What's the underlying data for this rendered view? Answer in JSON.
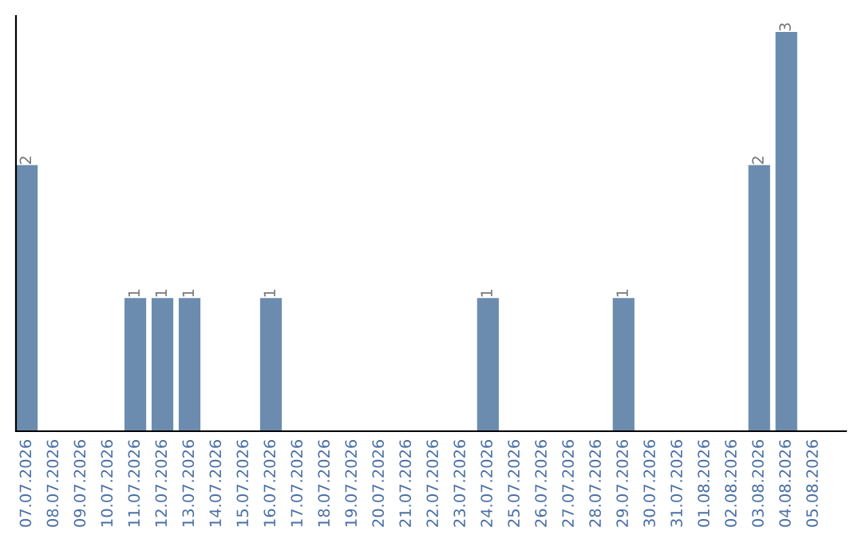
{
  "chart_data": {
    "type": "bar",
    "categories": [
      "07.07.2026",
      "08.07.2026",
      "09.07.2026",
      "10.07.2026",
      "11.07.2026",
      "12.07.2026",
      "13.07.2026",
      "14.07.2026",
      "15.07.2026",
      "16.07.2026",
      "17.07.2026",
      "18.07.2026",
      "19.07.2026",
      "20.07.2026",
      "21.07.2026",
      "22.07.2026",
      "23.07.2026",
      "24.07.2026",
      "25.07.2026",
      "26.07.2026",
      "27.07.2026",
      "28.07.2026",
      "29.07.2026",
      "30.07.2026",
      "31.07.2026",
      "01.08.2026",
      "02.08.2026",
      "03.08.2026",
      "04.08.2026",
      "05.08.2026"
    ],
    "values": [
      2,
      0,
      0,
      0,
      1,
      1,
      1,
      0,
      0,
      1,
      0,
      0,
      0,
      0,
      0,
      0,
      0,
      1,
      0,
      0,
      0,
      0,
      1,
      0,
      0,
      0,
      0,
      2,
      3,
      0
    ],
    "value_labels": [
      "2",
      null,
      null,
      null,
      "1",
      "1",
      "1",
      null,
      null,
      "1",
      null,
      null,
      null,
      null,
      null,
      null,
      null,
      "1",
      null,
      null,
      null,
      null,
      "1",
      null,
      null,
      null,
      null,
      "2",
      "3",
      null
    ],
    "color": "#6b8cae",
    "tick_labels": "x",
    "grid": false,
    "legend": false
  }
}
